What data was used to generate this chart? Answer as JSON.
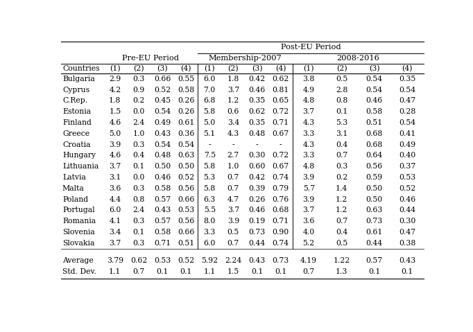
{
  "countries": [
    "Bulgaria",
    "Cyprus",
    "C.Rep.",
    "Estonia",
    "Finland",
    "Greece",
    "Croatia",
    "Hungary",
    "Lithuania",
    "Latvia",
    "Malta",
    "Poland",
    "Portugal",
    "Romania",
    "Slovenia",
    "Slovakia"
  ],
  "pre_eu": [
    [
      "2.9",
      "0.3",
      "0.66",
      "0.55"
    ],
    [
      "4.2",
      "0.9",
      "0.52",
      "0.58"
    ],
    [
      "1.8",
      "0.2",
      "0.45",
      "0.26"
    ],
    [
      "1.5",
      "0.0",
      "0.54",
      "0.26"
    ],
    [
      "4.6",
      "2.4",
      "0.49",
      "0.61"
    ],
    [
      "5.0",
      "1.0",
      "0.43",
      "0.36"
    ],
    [
      "3.9",
      "0.3",
      "0.54",
      "0.54"
    ],
    [
      "4.6",
      "0.4",
      "0.48",
      "0.63"
    ],
    [
      "3.7",
      "0.1",
      "0.50",
      "0.50"
    ],
    [
      "3.1",
      "0.0",
      "0.46",
      "0.52"
    ],
    [
      "3.6",
      "0.3",
      "0.58",
      "0.56"
    ],
    [
      "4.4",
      "0.8",
      "0.57",
      "0.66"
    ],
    [
      "6.0",
      "2.4",
      "0.43",
      "0.53"
    ],
    [
      "4.1",
      "0.3",
      "0.57",
      "0.56"
    ],
    [
      "3.4",
      "0.1",
      "0.58",
      "0.66"
    ],
    [
      "3.7",
      "0.3",
      "0.71",
      "0.51"
    ]
  ],
  "membership_2007": [
    [
      "6.0",
      "1.8",
      "0.42",
      "0.62"
    ],
    [
      "7.0",
      "3.7",
      "0.46",
      "0.81"
    ],
    [
      "6.8",
      "1.2",
      "0.35",
      "0.65"
    ],
    [
      "5.8",
      "0.6",
      "0.62",
      "0.72"
    ],
    [
      "5.0",
      "3.4",
      "0.35",
      "0.71"
    ],
    [
      "5.1",
      "4.3",
      "0.48",
      "0.67"
    ],
    [
      "-",
      "-",
      "-",
      "-"
    ],
    [
      "7.5",
      "2.7",
      "0.30",
      "0.72"
    ],
    [
      "5.8",
      "1.0",
      "0.60",
      "0.67"
    ],
    [
      "5.3",
      "0.7",
      "0.42",
      "0.74"
    ],
    [
      "5.8",
      "0.7",
      "0.39",
      "0.79"
    ],
    [
      "6.3",
      "4.7",
      "0.26",
      "0.76"
    ],
    [
      "5.5",
      "3.7",
      "0.46",
      "0.68"
    ],
    [
      "8.0",
      "3.9",
      "0.19",
      "0.71"
    ],
    [
      "3.3",
      "0.5",
      "0.73",
      "0.90"
    ],
    [
      "6.0",
      "0.7",
      "0.44",
      "0.74"
    ]
  ],
  "period_2008_2016": [
    [
      "3.8",
      "0.5",
      "0.54",
      "0.35"
    ],
    [
      "4.9",
      "2.8",
      "0.54",
      "0.54"
    ],
    [
      "4.8",
      "0.8",
      "0.46",
      "0.47"
    ],
    [
      "3.7",
      "0.1",
      "0.58",
      "0.28"
    ],
    [
      "4.3",
      "5.3",
      "0.51",
      "0.54"
    ],
    [
      "3.3",
      "3.1",
      "0.68",
      "0.41"
    ],
    [
      "4.3",
      "0.4",
      "0.68",
      "0.49"
    ],
    [
      "3.3",
      "0.7",
      "0.64",
      "0.40"
    ],
    [
      "4.8",
      "0.3",
      "0.56",
      "0.37"
    ],
    [
      "3.9",
      "0.2",
      "0.59",
      "0.53"
    ],
    [
      "5.7",
      "1.4",
      "0.50",
      "0.52"
    ],
    [
      "3.9",
      "1.2",
      "0.50",
      "0.46"
    ],
    [
      "3.7",
      "1.2",
      "0.63",
      "0.44"
    ],
    [
      "3.6",
      "0.7",
      "0.73",
      "0.30"
    ],
    [
      "4.0",
      "0.4",
      "0.61",
      "0.47"
    ],
    [
      "5.2",
      "0.5",
      "0.44",
      "0.38"
    ]
  ],
  "average": {
    "pre_eu": [
      "3.79",
      "0.62",
      "0.53",
      "0.52"
    ],
    "membership_2007": [
      "5.92",
      "2.24",
      "0.43",
      "0.73"
    ],
    "period_2008_2016": [
      "4.19",
      "1.22",
      "0.57",
      "0.43"
    ]
  },
  "std_dev": {
    "pre_eu": [
      "1.1",
      "0.7",
      "0.1",
      "0.1"
    ],
    "membership_2007": [
      "1.1",
      "1.5",
      "0.1",
      "0.1"
    ],
    "period_2008_2016": [
      "0.7",
      "1.3",
      "0.1",
      "0.1"
    ]
  },
  "font_size": 7.8,
  "header_font_size": 8.2
}
